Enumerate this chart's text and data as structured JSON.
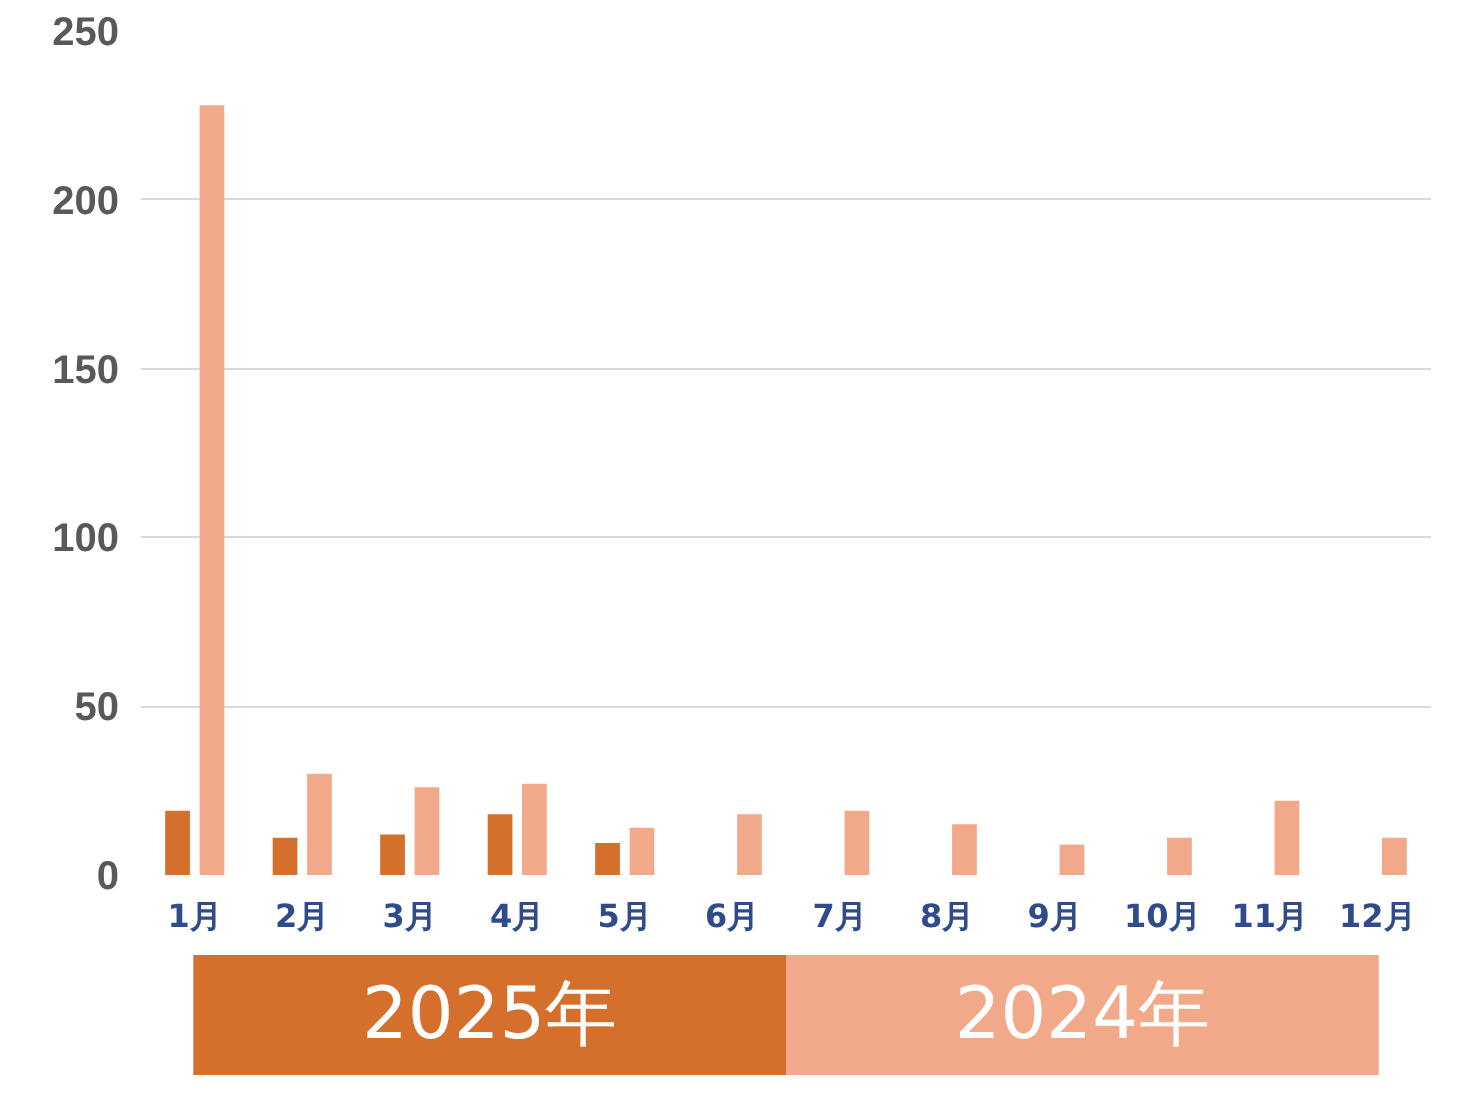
{
  "chart_data": {
    "type": "bar",
    "categories": [
      "1月",
      "2月",
      "3月",
      "4月",
      "5月",
      "6月",
      "7月",
      "8月",
      "9月",
      "10月",
      "11月",
      "12月"
    ],
    "series": [
      {
        "name": "2025年",
        "color": "#d4702b",
        "values": [
          19,
          11,
          12,
          18,
          9.5,
          null,
          null,
          null,
          null,
          null,
          null,
          null
        ]
      },
      {
        "name": "2024年",
        "color": "#f2a98a",
        "values": [
          228,
          30,
          26,
          27,
          14,
          18,
          19,
          15,
          9,
          11,
          22,
          11
        ]
      }
    ],
    "ylim": [
      0,
      250
    ],
    "yticks": [
      0,
      50,
      100,
      150,
      200,
      250
    ],
    "grid": "y",
    "legend": "bottom"
  }
}
